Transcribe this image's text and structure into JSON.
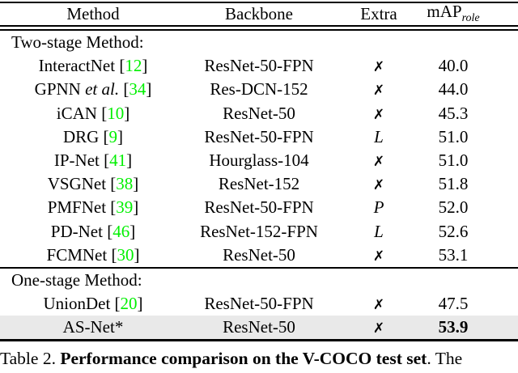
{
  "colors": {
    "citation_green": "#00f000",
    "highlight_row": "#e9e9e9"
  },
  "table": {
    "header": {
      "method": "Method",
      "backbone": "Backbone",
      "extra": "Extra",
      "map_main": "mAP",
      "map_sub": "role"
    },
    "section1_label": "Two-stage Method:",
    "section2_label": "One-stage Method:",
    "rows": [
      {
        "method": "InteractNet",
        "open": " [",
        "cite": "12",
        "close": "]",
        "backbone": "ResNet-50-FPN",
        "extra": "✗",
        "extra_class": "extra-cross",
        "map": "40.0"
      },
      {
        "method": "GPNN ",
        "etal": "et al.",
        "open": " [",
        "cite": "34",
        "close": "]",
        "backbone": "Res-DCN-152",
        "extra": "✗",
        "extra_class": "extra-cross",
        "map": "44.0"
      },
      {
        "method": "iCAN",
        "open": " [",
        "cite": "10",
        "close": "]",
        "backbone": "ResNet-50",
        "extra": "✗",
        "extra_class": "extra-cross",
        "map": "45.3"
      },
      {
        "method": "DRG",
        "open": " [",
        "cite": "9",
        "close": "]",
        "backbone": "ResNet-50-FPN",
        "extra": "L",
        "extra_class": "extra-letter",
        "map": "51.0"
      },
      {
        "method": "IP-Net",
        "open": " [",
        "cite": "41",
        "close": "]",
        "backbone": "Hourglass-104",
        "extra": "✗",
        "extra_class": "extra-cross",
        "map": "51.0"
      },
      {
        "method": "VSGNet",
        "open": " [",
        "cite": "38",
        "close": "]",
        "backbone": "ResNet-152",
        "extra": "✗",
        "extra_class": "extra-cross",
        "map": "51.8"
      },
      {
        "method": "PMFNet",
        "open": " [",
        "cite": "39",
        "close": "]",
        "backbone": "ResNet-50-FPN",
        "extra": "P",
        "extra_class": "extra-letter",
        "map": "52.0"
      },
      {
        "method": "PD-Net",
        "open": " [",
        "cite": "46",
        "close": "]",
        "backbone": "ResNet-152-FPN",
        "extra": "L",
        "extra_class": "extra-letter",
        "map": "52.6"
      },
      {
        "method": "FCMNet",
        "open": " [",
        "cite": "30",
        "close": "]",
        "backbone": "ResNet-50",
        "extra": "✗",
        "extra_class": "extra-cross",
        "map": "53.1"
      },
      {
        "method": "UnionDet",
        "open": " [",
        "cite": "20",
        "close": "]",
        "backbone": "ResNet-50-FPN",
        "extra": "✗",
        "extra_class": "extra-cross",
        "map": "47.5"
      },
      {
        "method": "AS-Net*",
        "backbone": "ResNet-50",
        "extra": "✗",
        "extra_class": "extra-cross",
        "map": "53.9",
        "map_class": "map-bold"
      }
    ]
  },
  "caption": {
    "prefix": "Table 2. ",
    "bold": "Performance comparison on the V-COCO test set",
    "suffix": ". The"
  }
}
